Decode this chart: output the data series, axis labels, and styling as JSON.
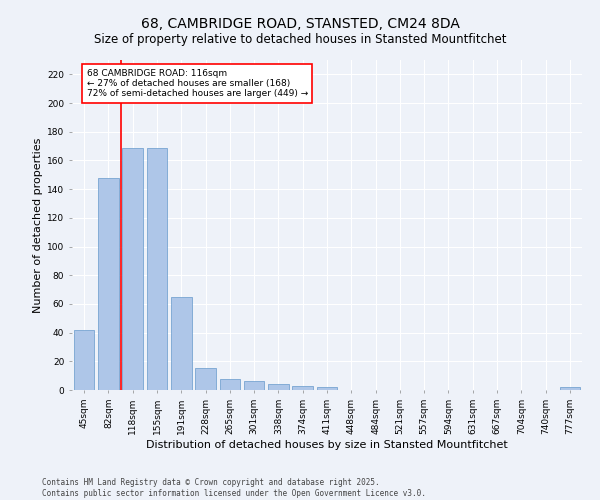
{
  "title": "68, CAMBRIDGE ROAD, STANSTED, CM24 8DA",
  "subtitle": "Size of property relative to detached houses in Stansted Mountfitchet",
  "xlabel": "Distribution of detached houses by size in Stansted Mountfitchet",
  "ylabel": "Number of detached properties",
  "categories": [
    "45sqm",
    "82sqm",
    "118sqm",
    "155sqm",
    "191sqm",
    "228sqm",
    "265sqm",
    "301sqm",
    "338sqm",
    "374sqm",
    "411sqm",
    "448sqm",
    "484sqm",
    "521sqm",
    "557sqm",
    "594sqm",
    "631sqm",
    "667sqm",
    "704sqm",
    "740sqm",
    "777sqm"
  ],
  "values": [
    42,
    148,
    169,
    169,
    65,
    15,
    8,
    6,
    4,
    3,
    2,
    0,
    0,
    0,
    0,
    0,
    0,
    0,
    0,
    0,
    2
  ],
  "bar_color": "#aec6e8",
  "bar_edge_color": "#6699cc",
  "vline_x": 1.5,
  "vline_color": "red",
  "annotation_text": "68 CAMBRIDGE ROAD: 116sqm\n← 27% of detached houses are smaller (168)\n72% of semi-detached houses are larger (449) →",
  "annotation_box_color": "white",
  "annotation_box_edge_color": "red",
  "ylim": [
    0,
    230
  ],
  "yticks": [
    0,
    20,
    40,
    60,
    80,
    100,
    120,
    140,
    160,
    180,
    200,
    220
  ],
  "background_color": "#eef2f9",
  "grid_color": "white",
  "footer_text": "Contains HM Land Registry data © Crown copyright and database right 2025.\nContains public sector information licensed under the Open Government Licence v3.0.",
  "title_fontsize": 10,
  "subtitle_fontsize": 8.5,
  "xlabel_fontsize": 8,
  "ylabel_fontsize": 8,
  "tick_fontsize": 6.5,
  "annotation_fontsize": 6.5,
  "footer_fontsize": 5.5
}
